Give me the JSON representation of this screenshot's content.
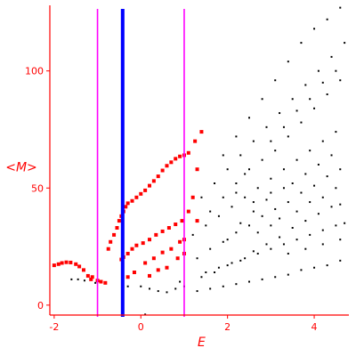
{
  "chart_data": {
    "type": "scatter",
    "title": "",
    "xlabel": "E",
    "ylabel": "<M>",
    "xlim": [
      -2.1,
      4.8
    ],
    "ylim": [
      -5,
      128
    ],
    "x_ticks": [
      -2,
      0,
      2,
      4
    ],
    "x_tick_labels": [
      "-2",
      "0",
      "2",
      "4"
    ],
    "y_ticks": [
      0,
      50,
      100
    ],
    "y_tick_labels": [
      "0",
      "50",
      "100"
    ],
    "grid": false,
    "legend": "none",
    "vertical_lines": [
      {
        "x": -1.0,
        "color": "#ff00ff",
        "style": "thin"
      },
      {
        "x": -0.42,
        "color": "#0000ff",
        "style": "thick"
      },
      {
        "x": 1.0,
        "color": "#ff00ff",
        "style": "thin"
      }
    ],
    "colors": {
      "axis": "#ff0000",
      "red_points": "#ff0000",
      "black_points": "#000000",
      "magenta": "#ff00ff",
      "blue": "#0000ff"
    },
    "series": [
      {
        "color": "#ff0000",
        "points": [
          [
            -2.0,
            17
          ],
          [
            -1.9,
            17.5
          ],
          [
            -1.82,
            18
          ],
          [
            -1.72,
            18.3
          ],
          [
            -1.62,
            18.2
          ],
          [
            -1.5,
            17.5
          ],
          [
            -1.42,
            16.5
          ],
          [
            -1.32,
            15
          ],
          [
            -1.22,
            12.5
          ],
          [
            -1.15,
            11
          ],
          [
            -1.12,
            12
          ],
          [
            -1.0,
            10.5
          ],
          [
            -0.92,
            10
          ],
          [
            -0.82,
            9.5
          ],
          [
            -0.75,
            24
          ],
          [
            -0.7,
            27
          ],
          [
            -0.62,
            30
          ],
          [
            -0.55,
            33
          ],
          [
            -0.5,
            36
          ],
          [
            -0.45,
            38
          ],
          [
            -0.4,
            40
          ],
          [
            -0.35,
            42
          ],
          [
            -0.3,
            43.5
          ],
          [
            -0.2,
            44.5
          ],
          [
            -0.1,
            46
          ],
          [
            0.0,
            47.5
          ],
          [
            0.1,
            49
          ],
          [
            0.2,
            51
          ],
          [
            0.3,
            53
          ],
          [
            0.4,
            55
          ],
          [
            0.5,
            57.5
          ],
          [
            0.6,
            59.5
          ],
          [
            0.7,
            61
          ],
          [
            0.8,
            62.5
          ],
          [
            0.9,
            63.5
          ],
          [
            1.0,
            64
          ],
          [
            1.1,
            65
          ],
          [
            -0.45,
            19.5
          ],
          [
            -0.4,
            20.5
          ],
          [
            -0.3,
            22
          ],
          [
            -0.2,
            24
          ],
          [
            -0.1,
            25.5
          ],
          [
            0.05,
            26.5
          ],
          [
            0.2,
            28
          ],
          [
            0.35,
            30
          ],
          [
            0.5,
            31.5
          ],
          [
            0.65,
            33
          ],
          [
            0.8,
            34.5
          ],
          [
            0.95,
            36
          ],
          [
            -0.15,
            14
          ],
          [
            0.1,
            18
          ],
          [
            0.3,
            20
          ],
          [
            0.5,
            22.5
          ],
          [
            0.7,
            24
          ],
          [
            0.9,
            27
          ],
          [
            1.0,
            28
          ],
          [
            -0.3,
            12
          ],
          [
            0.2,
            12.5
          ],
          [
            0.4,
            15
          ],
          [
            0.6,
            16
          ],
          [
            0.85,
            20
          ],
          [
            1.0,
            22
          ],
          [
            1.25,
            70
          ],
          [
            1.4,
            74
          ],
          [
            1.3,
            58
          ],
          [
            1.2,
            46
          ],
          [
            1.1,
            40
          ],
          [
            1.3,
            36
          ]
        ]
      },
      {
        "color": "#000000",
        "points": [
          [
            -1.6,
            11
          ],
          [
            -1.45,
            11
          ],
          [
            -1.3,
            10.5
          ],
          [
            -1.05,
            9.5
          ],
          [
            -0.3,
            8
          ],
          [
            0.0,
            8
          ],
          [
            0.2,
            7
          ],
          [
            0.4,
            6
          ],
          [
            0.6,
            5.5
          ],
          [
            0.8,
            7
          ],
          [
            1.0,
            8
          ],
          [
            0.9,
            10
          ],
          [
            0.1,
            -4
          ],
          [
            1.5,
            14
          ],
          [
            1.8,
            16
          ],
          [
            2.1,
            18
          ],
          [
            2.4,
            20
          ],
          [
            2.7,
            22
          ],
          [
            3.0,
            24
          ],
          [
            3.3,
            26
          ],
          [
            3.6,
            28
          ],
          [
            3.9,
            30
          ],
          [
            4.2,
            32
          ],
          [
            4.5,
            34
          ],
          [
            4.7,
            35
          ],
          [
            1.3,
            6
          ],
          [
            1.6,
            7
          ],
          [
            1.9,
            8
          ],
          [
            2.2,
            9
          ],
          [
            2.5,
            10
          ],
          [
            2.8,
            11
          ],
          [
            3.1,
            12
          ],
          [
            3.4,
            13
          ],
          [
            3.7,
            15
          ],
          [
            4.0,
            16
          ],
          [
            4.3,
            17
          ],
          [
            4.6,
            19
          ],
          [
            1.2,
            30
          ],
          [
            1.5,
            34
          ],
          [
            1.8,
            38
          ],
          [
            2.1,
            42
          ],
          [
            2.4,
            46
          ],
          [
            2.7,
            50
          ],
          [
            3.0,
            54
          ],
          [
            3.3,
            58
          ],
          [
            3.6,
            62
          ],
          [
            3.9,
            66
          ],
          [
            4.2,
            70
          ],
          [
            4.5,
            74
          ],
          [
            1.4,
            46
          ],
          [
            1.7,
            52
          ],
          [
            2.0,
            58
          ],
          [
            2.3,
            64
          ],
          [
            2.6,
            70
          ],
          [
            2.9,
            76
          ],
          [
            3.2,
            82
          ],
          [
            3.5,
            88
          ],
          [
            3.8,
            94
          ],
          [
            4.1,
            100
          ],
          [
            4.4,
            106
          ],
          [
            4.7,
            112
          ],
          [
            1.9,
            64
          ],
          [
            2.2,
            72
          ],
          [
            2.5,
            80
          ],
          [
            2.8,
            88
          ],
          [
            3.1,
            96
          ],
          [
            3.4,
            104
          ],
          [
            3.7,
            112
          ],
          [
            4.0,
            118
          ],
          [
            4.3,
            122
          ],
          [
            4.6,
            127
          ],
          [
            1.3,
            20
          ],
          [
            1.6,
            24
          ],
          [
            1.9,
            27
          ],
          [
            2.2,
            31
          ],
          [
            2.5,
            34
          ],
          [
            2.8,
            38
          ],
          [
            3.1,
            41
          ],
          [
            3.4,
            44
          ],
          [
            3.7,
            48
          ],
          [
            4.0,
            51
          ],
          [
            4.3,
            55
          ],
          [
            4.6,
            58
          ],
          [
            1.4,
            12
          ],
          [
            1.7,
            14
          ],
          [
            2.0,
            17
          ],
          [
            2.3,
            19
          ],
          [
            2.6,
            23
          ],
          [
            2.9,
            26
          ],
          [
            3.2,
            29
          ],
          [
            3.5,
            33
          ],
          [
            3.8,
            36
          ],
          [
            4.1,
            39
          ],
          [
            4.4,
            42
          ],
          [
            2.0,
            28
          ],
          [
            2.3,
            35
          ],
          [
            2.6,
            40
          ],
          [
            2.9,
            45
          ],
          [
            3.2,
            37
          ],
          [
            3.5,
            52
          ],
          [
            3.8,
            56
          ],
          [
            4.1,
            60
          ],
          [
            4.4,
            64
          ],
          [
            4.6,
            43
          ],
          [
            2.5,
            58
          ],
          [
            2.8,
            62
          ],
          [
            3.1,
            66
          ],
          [
            3.4,
            72
          ],
          [
            3.7,
            78
          ],
          [
            4.0,
            84
          ],
          [
            4.3,
            90
          ],
          [
            4.6,
            96
          ],
          [
            3.0,
            70
          ],
          [
            3.3,
            76
          ],
          [
            3.6,
            83
          ],
          [
            3.9,
            88
          ],
          [
            4.2,
            95
          ],
          [
            4.5,
            100
          ],
          [
            2.2,
            52
          ],
          [
            2.4,
            56
          ],
          [
            2.7,
            31
          ],
          [
            3.0,
            48
          ],
          [
            3.3,
            50
          ],
          [
            3.6,
            40
          ],
          [
            3.9,
            44
          ],
          [
            4.2,
            46
          ],
          [
            4.5,
            50
          ],
          [
            1.6,
            40
          ],
          [
            1.9,
            46
          ],
          [
            2.2,
            48
          ],
          [
            2.6,
            44
          ],
          [
            3.0,
            34
          ],
          [
            3.4,
            22
          ],
          [
            3.8,
            24
          ],
          [
            4.2,
            26
          ],
          [
            4.6,
            28
          ]
        ]
      }
    ]
  }
}
